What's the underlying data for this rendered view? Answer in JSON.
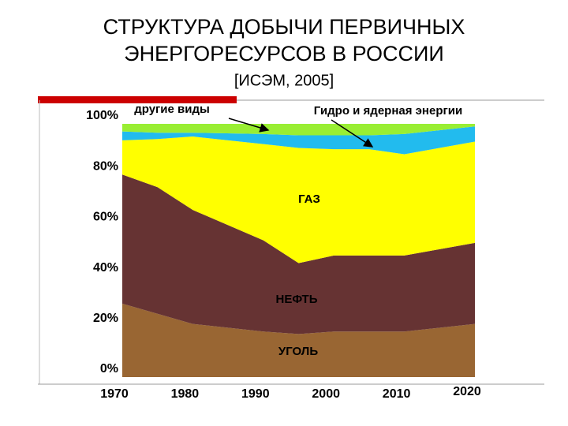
{
  "chart_data": {
    "type": "stacked_area",
    "title": [
      "СТРУКТУРА ДОБЫЧИ ПЕРВИЧНЫХ",
      "ЭНЕРГОРЕСУРСОВ В РОССИИ"
    ],
    "subtitle": "[ИСЭМ, 2005]",
    "x": [
      1970,
      1975,
      1980,
      1990,
      1995,
      2000,
      2005,
      2010,
      2020
    ],
    "series": [
      {
        "name": "УГОЛЬ",
        "color": "#996633",
        "values": [
          29,
          25,
          21,
          18,
          17,
          18,
          18,
          18,
          21
        ]
      },
      {
        "name": "НЕФТЬ",
        "color": "#663333",
        "values": [
          51,
          50,
          45,
          36,
          28,
          30,
          30,
          30,
          32
        ]
      },
      {
        "name": "ГАЗ",
        "color": "#ffff00",
        "values": [
          13.5,
          19,
          29,
          38,
          45.5,
          42,
          42,
          40,
          40
        ]
      },
      {
        "name": "Гидро и ядерная энергии",
        "color": "#22bbee",
        "values": [
          3.5,
          2.5,
          1.5,
          4,
          5,
          5.5,
          5.5,
          8,
          6
        ]
      },
      {
        "name": "другие виды",
        "color": "#99ee33",
        "values": [
          3,
          3.5,
          3.5,
          4,
          4.5,
          4.5,
          4.5,
          4,
          1
        ]
      }
    ],
    "xlim": [
      1970,
      2020
    ],
    "xticks": [
      1970,
      1980,
      1990,
      2000,
      2010,
      2020
    ],
    "ylim": [
      0,
      100
    ],
    "yticks": [
      {
        "value": 0,
        "label": "0%"
      },
      {
        "value": 20,
        "label": "20%"
      },
      {
        "value": 40,
        "label": "40%"
      },
      {
        "value": 60,
        "label": "60%"
      },
      {
        "value": 80,
        "label": "80%"
      },
      {
        "value": 100,
        "label": "100%"
      }
    ]
  }
}
